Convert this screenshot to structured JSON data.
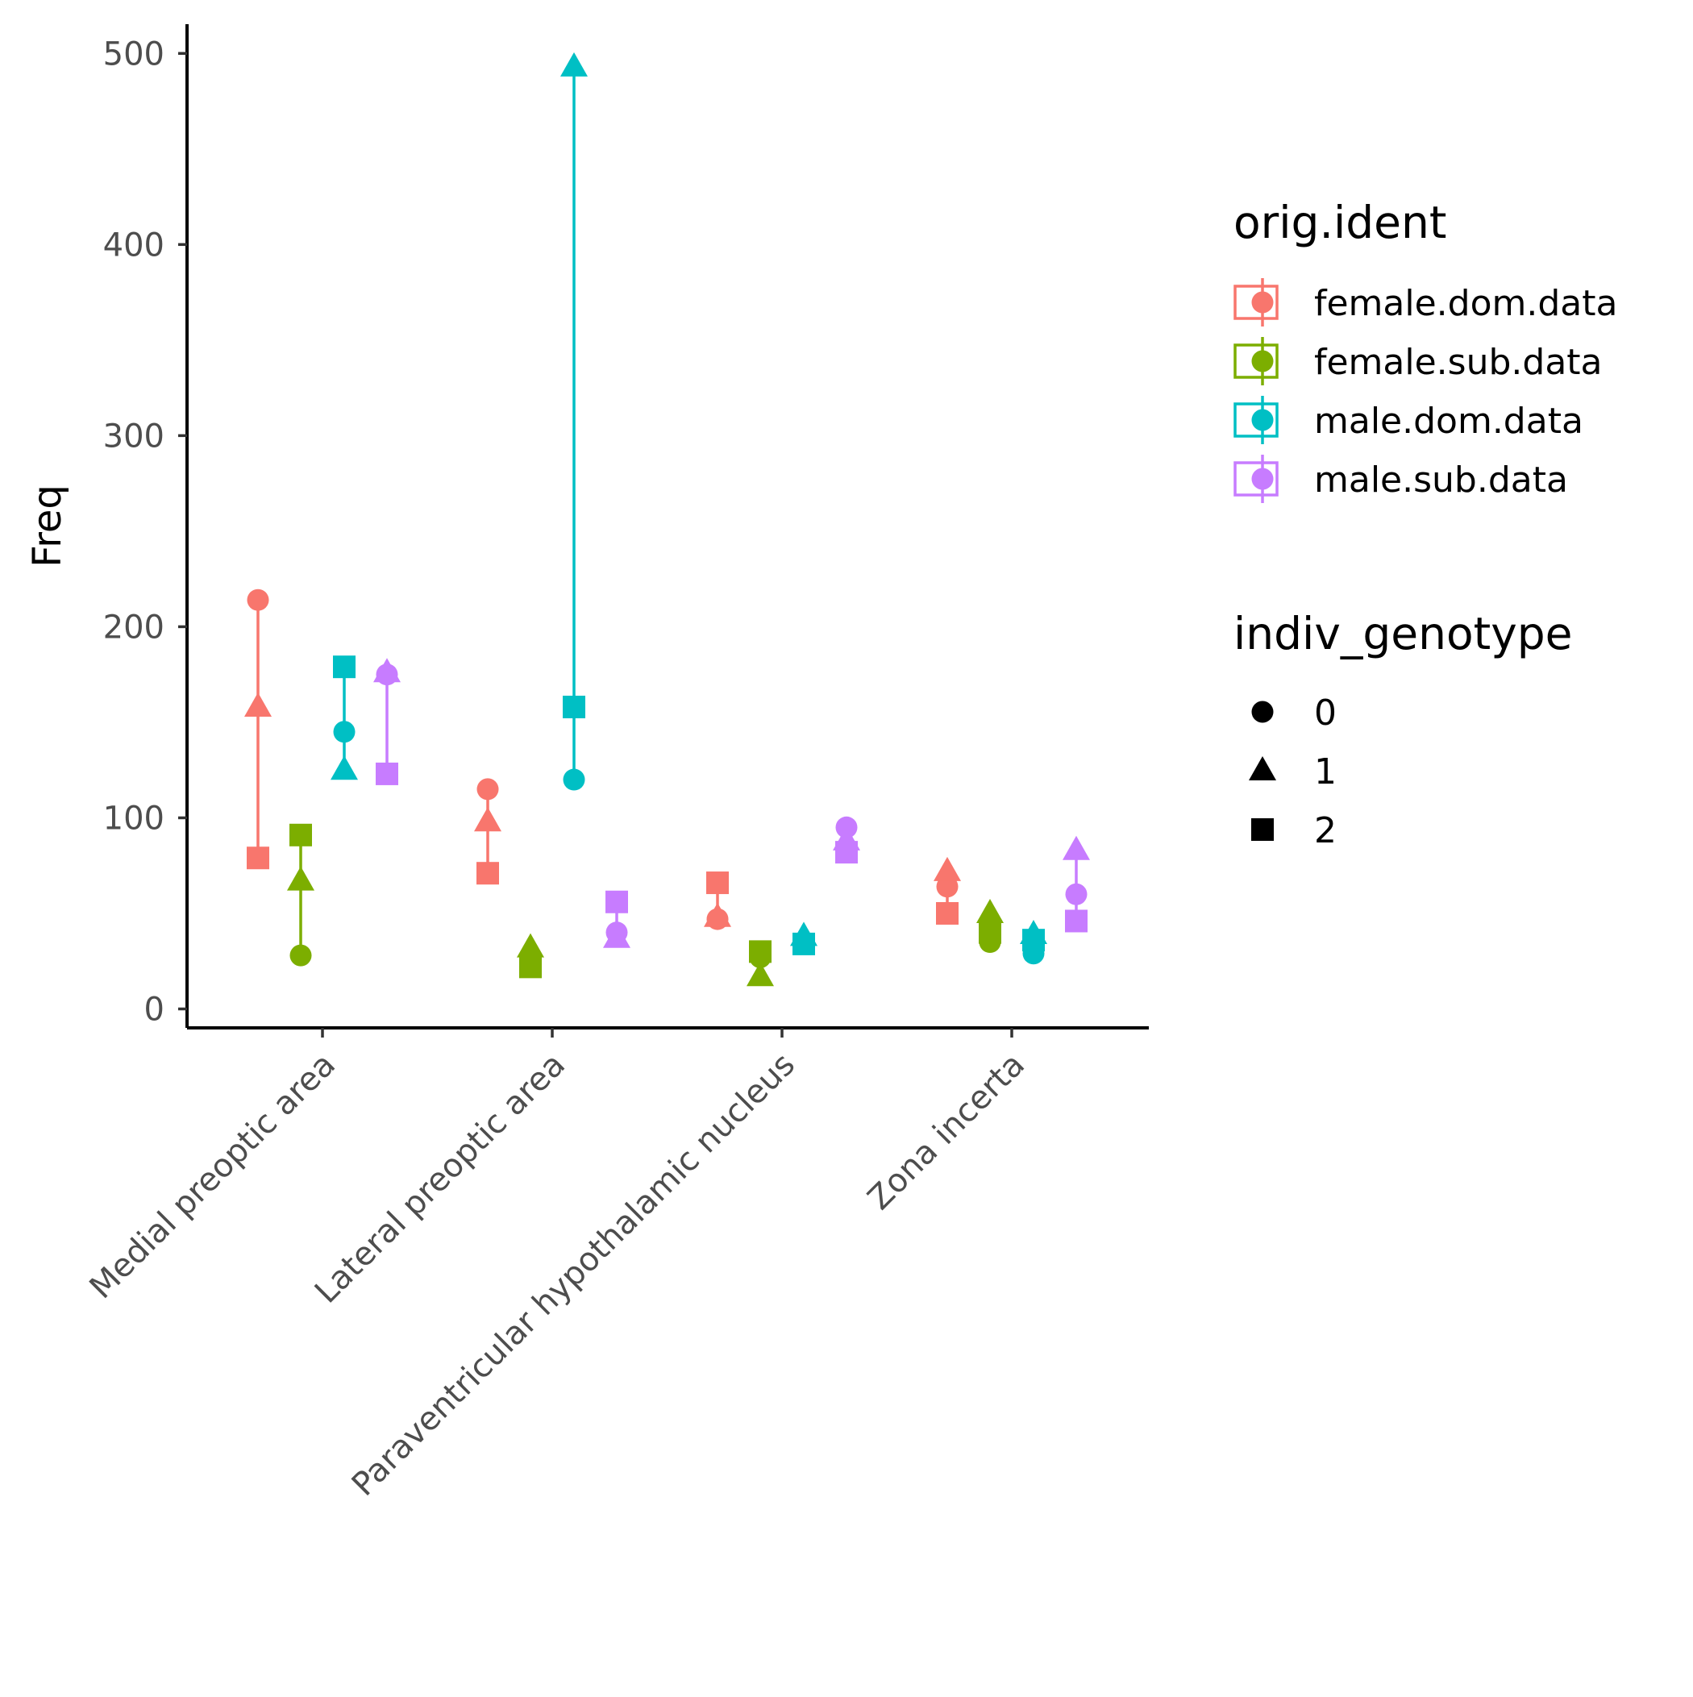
{
  "chart_data": {
    "type": "scatter",
    "title": "",
    "xlabel": "",
    "ylabel": "Freq",
    "ylim": [
      -10,
      505
    ],
    "yticks": [
      0,
      100,
      200,
      300,
      400,
      500
    ],
    "grid": false,
    "legend_position": "right",
    "categories": [
      "Medial preoptic area",
      "Lateral preoptic area",
      "Paraventricular hypothalamic nucleus",
      "Zona incerta"
    ],
    "color_legend": {
      "title": "orig.ident",
      "entries": [
        "female.dom.data",
        "female.sub.data",
        "male.dom.data",
        "male.sub.data"
      ]
    },
    "shape_legend": {
      "title": "indiv_genotype",
      "entries": [
        "0",
        "1",
        "2"
      ],
      "shapes": [
        "circle",
        "triangle",
        "square"
      ]
    },
    "series": [
      {
        "name": "female.dom.data",
        "color": "#F8766D",
        "values": [
          {
            "category": "Medial preoptic area",
            "0": 214,
            "1": 158,
            "2": 79
          },
          {
            "category": "Lateral preoptic area",
            "0": 115,
            "1": 98,
            "2": 71
          },
          {
            "category": "Paraventricular hypothalamic nucleus",
            "0": 47,
            "1": 48,
            "2": 66
          },
          {
            "category": "Zona incerta",
            "0": 64,
            "1": 72,
            "2": 50
          }
        ]
      },
      {
        "name": "female.sub.data",
        "color": "#7CAE00",
        "values": [
          {
            "category": "Medial preoptic area",
            "0": 28,
            "1": 67,
            "2": 91
          },
          {
            "category": "Lateral preoptic area",
            "0": 23,
            "1": 32,
            "2": 22
          },
          {
            "category": "Paraventricular hypothalamic nucleus",
            "0": 27,
            "1": 17,
            "2": 30
          },
          {
            "category": "Zona incerta",
            "0": 35,
            "1": 50,
            "2": 40
          }
        ]
      },
      {
        "name": "male.dom.data",
        "color": "#00BFC4",
        "values": [
          {
            "category": "Medial preoptic area",
            "0": 145,
            "1": 125,
            "2": 179
          },
          {
            "category": "Lateral preoptic area",
            "0": 120,
            "1": 493,
            "2": 158
          },
          {
            "category": "Paraventricular hypothalamic nucleus",
            "0": 35,
            "1": 38,
            "2": 34
          },
          {
            "category": "Zona incerta",
            "0": 29,
            "1": 39,
            "2": 36
          }
        ]
      },
      {
        "name": "male.sub.data",
        "color": "#C77CFF",
        "values": [
          {
            "category": "Medial preoptic area",
            "0": 175,
            "1": 176,
            "2": 123
          },
          {
            "category": "Lateral preoptic area",
            "0": 40,
            "1": 37,
            "2": 56
          },
          {
            "category": "Paraventricular hypothalamic nucleus",
            "0": 95,
            "1": 88,
            "2": 82
          },
          {
            "category": "Zona incerta",
            "0": 60,
            "1": 83,
            "2": 46
          }
        ]
      }
    ]
  }
}
